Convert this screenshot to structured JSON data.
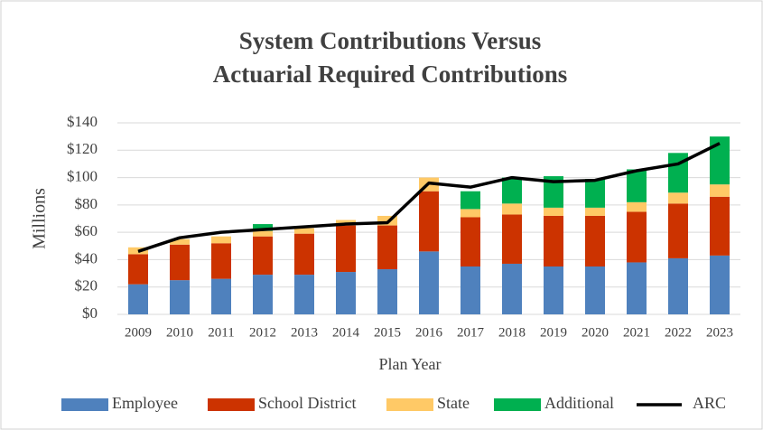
{
  "chart_data": {
    "type": "stacked_bar_line",
    "title": [
      "System Contributions Versus",
      "Actuarial Required Contributions"
    ],
    "xlabel": "Plan Year",
    "ylabel": "Millions",
    "categories": [
      "2009",
      "2010",
      "2011",
      "2012",
      "2013",
      "2014",
      "2015",
      "2016",
      "2017",
      "2018",
      "2019",
      "2020",
      "2021",
      "2022",
      "2023"
    ],
    "series": [
      {
        "name": "Employee",
        "color": "#4f81bd",
        "values": [
          22,
          25,
          26,
          29,
          29,
          31,
          33,
          46,
          35,
          37,
          35,
          35,
          38,
          41,
          43
        ]
      },
      {
        "name": "School District",
        "color": "#cc3300",
        "values": [
          22,
          26,
          26,
          28,
          30,
          34,
          32,
          44,
          36,
          36,
          37,
          37,
          37,
          40,
          43
        ]
      },
      {
        "name": "State",
        "color": "#ffc966",
        "values": [
          5,
          4,
          5,
          4,
          4,
          4,
          7,
          10,
          6,
          8,
          6,
          6,
          7,
          8,
          9
        ]
      },
      {
        "name": "Additional",
        "color": "#00b050",
        "values": [
          0,
          0,
          0,
          5,
          0,
          0,
          0,
          0,
          13,
          19,
          23,
          21,
          24,
          29,
          35
        ]
      },
      {
        "name": "ARC",
        "color": "#000000",
        "type": "line",
        "values": [
          46,
          56,
          60,
          62,
          64,
          66,
          67,
          96,
          93,
          100,
          97,
          98,
          105,
          110,
          125
        ]
      }
    ],
    "ylim": [
      0,
      140
    ],
    "yticks": [
      {
        "value": 0,
        "label": "$0"
      },
      {
        "value": 20,
        "label": "$20"
      },
      {
        "value": 40,
        "label": "$40"
      },
      {
        "value": 60,
        "label": "$60"
      },
      {
        "value": 80,
        "label": "$80"
      },
      {
        "value": 100,
        "label": "$100"
      },
      {
        "value": 120,
        "label": "$120"
      },
      {
        "value": 140,
        "label": "$140"
      }
    ],
    "grid": true,
    "legend": "bottom"
  }
}
